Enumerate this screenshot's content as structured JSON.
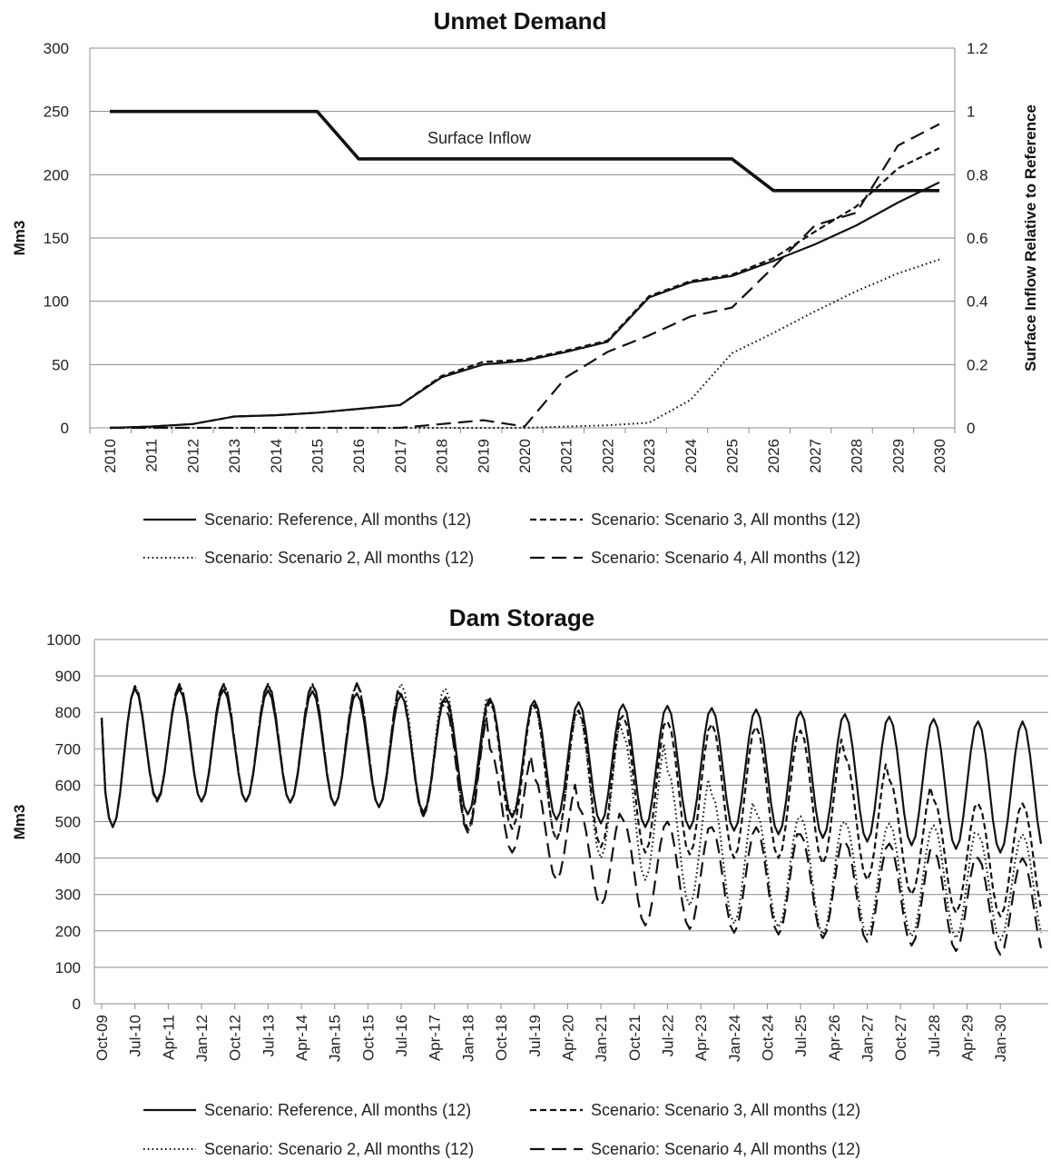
{
  "chart_data": [
    {
      "type": "line",
      "title": "Unmet Demand",
      "ylabel": "Mm3",
      "y2label": "Surface Inflow  Relative to Reference",
      "ylim": [
        0,
        300
      ],
      "y2lim": [
        0,
        1.2
      ],
      "yticks": [
        "0",
        "50",
        "100",
        "150",
        "200",
        "250",
        "300"
      ],
      "y2ticks": [
        "0",
        "0.2",
        "0.4",
        "0.6",
        "0.8",
        "1",
        "1.2"
      ],
      "categories": [
        "2010",
        "2011",
        "2012",
        "2013",
        "2014",
        "2015",
        "2016",
        "2017",
        "2018",
        "2019",
        "2020",
        "2021",
        "2022",
        "2023",
        "2024",
        "2025",
        "2026",
        "2027",
        "2028",
        "2029",
        "2030"
      ],
      "legend_position": "bottom",
      "grid": true,
      "annotation": "Surface Inflow",
      "series": [
        {
          "name": "Scenario: Reference, All months (12)",
          "style": "solid",
          "values": [
            0,
            1,
            3,
            9,
            10,
            12,
            15,
            18,
            40,
            50,
            53,
            60,
            68,
            103,
            115,
            120,
            132,
            145,
            160,
            178,
            194
          ]
        },
        {
          "name": "Scenario: Scenario 3, All months (12)",
          "style": "short-dash",
          "values": [
            0,
            1,
            3,
            9,
            10,
            12,
            15,
            18,
            41,
            52,
            54,
            61,
            69,
            104,
            116,
            121,
            134,
            155,
            175,
            205,
            221
          ]
        },
        {
          "name": "Scenario: Scenario 2, All months (12)",
          "style": "dot",
          "values": [
            0,
            0,
            0,
            0,
            0,
            0,
            0,
            0,
            0,
            0,
            0,
            1,
            2,
            4,
            22,
            59,
            75,
            92,
            108,
            122,
            133
          ]
        },
        {
          "name": "Scenario: Scenario 4, All months (12)",
          "style": "long-dash",
          "values": [
            0,
            0,
            0,
            0,
            0,
            0,
            0,
            0,
            3,
            6,
            1,
            40,
            60,
            73,
            88,
            95,
            127,
            160,
            170,
            223,
            240
          ]
        },
        {
          "name": "Surface Inflow",
          "style": "thick-solid",
          "axis": "right",
          "values": [
            1,
            1,
            1,
            1,
            1,
            1,
            0.85,
            0.85,
            0.85,
            0.85,
            0.85,
            0.85,
            0.85,
            0.85,
            0.85,
            0.85,
            0.75,
            0.75,
            0.75,
            0.75,
            0.75
          ]
        }
      ]
    },
    {
      "type": "line",
      "title": "Dam Storage",
      "ylabel": "Mm3",
      "ylim": [
        0,
        1000
      ],
      "yticks": [
        "0",
        "100",
        "200",
        "300",
        "400",
        "500",
        "600",
        "700",
        "800",
        "900",
        "1000"
      ],
      "xticks": [
        "Oct-09",
        "Jul-10",
        "Apr-11",
        "Jan-12",
        "Oct-12",
        "Jul-13",
        "Apr-14",
        "Jan-15",
        "Oct-15",
        "Jul-16",
        "Apr-17",
        "Jan-18",
        "Oct-18",
        "Jul-19",
        "Apr-20",
        "Jan-21",
        "Oct-21",
        "Jul-22",
        "Apr-23",
        "Jan-24",
        "Oct-24",
        "Jul-25",
        "Apr-26",
        "Jan-27",
        "Oct-27",
        "Jul-28",
        "Apr-29",
        "Jan-30"
      ],
      "legend_position": "bottom",
      "grid": true,
      "series_annual": {
        "years": [
          2010,
          2011,
          2012,
          2013,
          2014,
          2015,
          2016,
          2017,
          2018,
          2019,
          2020,
          2021,
          2022,
          2023,
          2024,
          2025,
          2026,
          2027,
          2028,
          2029,
          2030
        ],
        "series": [
          {
            "name": "Scenario: Reference, All months (12)",
            "style": "solid",
            "peaks": [
              865,
              865,
              865,
              862,
              860,
              858,
              852,
              848,
              842,
              838,
              832,
              828,
              822,
              818,
              812,
              808,
              802,
              795,
              788,
              782,
              775
            ],
            "troughs": [
              485,
              560,
              555,
              555,
              552,
              545,
              540,
              525,
              520,
              512,
              505,
              495,
              485,
              480,
              475,
              465,
              455,
              445,
              435,
              425,
              415
            ]
          },
          {
            "name": "Scenario: Scenario 3, All months (12)",
            "style": "short-dash",
            "peaks": [
              865,
              872,
              875,
              875,
              875,
              875,
              878,
              850,
              830,
              830,
              820,
              805,
              790,
              775,
              768,
              760,
              750,
              680,
              615,
              560,
              550
            ],
            "troughs": [
              485,
              555,
              555,
              555,
              552,
              545,
              540,
              520,
              480,
              480,
              450,
              430,
              415,
              410,
              400,
              400,
              385,
              340,
              300,
              250,
              240
            ]
          },
          {
            "name": "Scenario: Scenario 2, All months (12)",
            "style": "dot",
            "peaks": [
              865,
              872,
              878,
              878,
              878,
              878,
              880,
              878,
              865,
              830,
              815,
              800,
              740,
              640,
              575,
              525,
              515,
              500,
              495,
              490,
              465
            ],
            "troughs": [
              485,
              555,
              555,
              555,
              552,
              545,
              540,
              520,
              470,
              520,
              450,
              400,
              340,
              270,
              220,
              210,
              190,
              190,
              185,
              180,
              175
            ]
          },
          {
            "name": "Scenario: Scenario 4, All months (12)",
            "style": "long-dash",
            "peaks": [
              865,
              872,
              878,
              878,
              878,
              878,
              880,
              845,
              810,
              700,
              620,
              540,
              505,
              500,
              485,
              485,
              465,
              445,
              440,
              420,
              400
            ],
            "troughs": [
              485,
              555,
              555,
              555,
              552,
              545,
              540,
              515,
              470,
              415,
              340,
              270,
              215,
              205,
              195,
              190,
              180,
              170,
              160,
              145,
              135
            ]
          }
        ]
      }
    }
  ]
}
